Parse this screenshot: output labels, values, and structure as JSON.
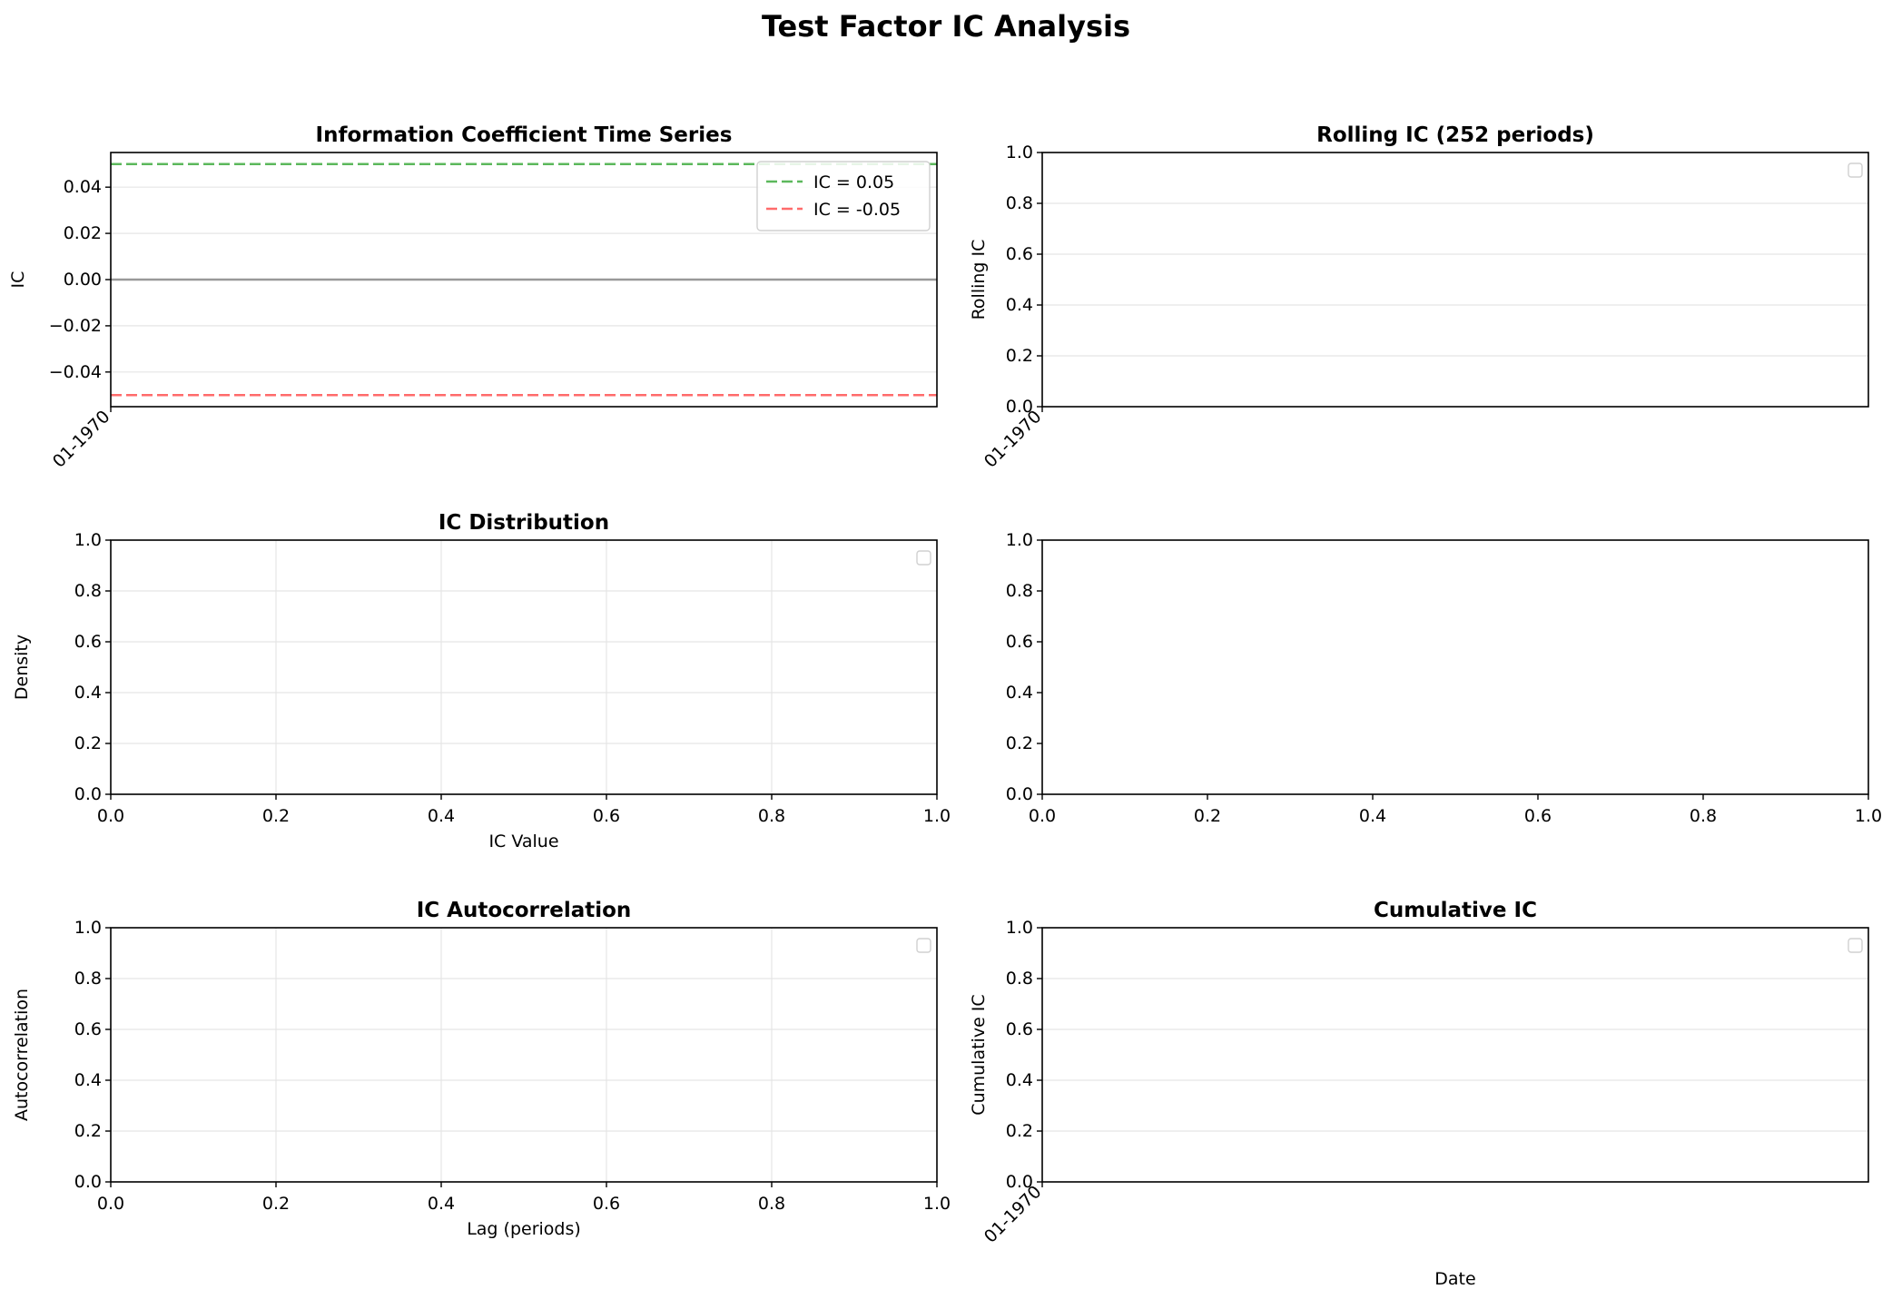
{
  "figure": {
    "title": "Test Factor IC Analysis"
  },
  "colors": {
    "frame": "#000000",
    "grid": "#e5e5e5",
    "zero_line": "#999999",
    "positive_threshold": "#5cb85c",
    "negative_threshold": "#ff6b6b",
    "legend_border": "#d0d0d0"
  },
  "chart_data": [
    {
      "id": "ic_timeseries",
      "type": "line",
      "title": "Information Coefficient Time Series",
      "xlabel": "",
      "ylabel": "IC",
      "x_is_date": true,
      "x_ticks": [
        {
          "value": 0,
          "label": "01-1970"
        }
      ],
      "ylim": [
        -0.055,
        0.055
      ],
      "y_ticks": [
        {
          "value": -0.04,
          "label": "−0.04"
        },
        {
          "value": -0.02,
          "label": "−0.02"
        },
        {
          "value": 0,
          "label": "0.00"
        },
        {
          "value": 0.02,
          "label": "0.02"
        },
        {
          "value": 0.04,
          "label": "0.04"
        }
      ],
      "grid": "y",
      "series": [],
      "reference_lines": [
        {
          "y": 0.05,
          "label": "IC = 0.05",
          "style": "dashed",
          "color_key": "positive_threshold"
        },
        {
          "y": -0.05,
          "label": "IC = -0.05",
          "style": "dashed",
          "color_key": "negative_threshold"
        },
        {
          "y": 0,
          "label": "",
          "style": "solid",
          "color_key": "zero_line"
        }
      ],
      "legend": {
        "placement": "top-right",
        "entries": [
          "IC = 0.05",
          "IC = -0.05"
        ]
      }
    },
    {
      "id": "rolling_ic",
      "type": "line",
      "title": "Rolling IC (252 periods)",
      "xlabel": "",
      "ylabel": "Rolling IC",
      "x_is_date": true,
      "x_ticks": [
        {
          "value": 0,
          "label": "01-1970"
        }
      ],
      "ylim": [
        0,
        1
      ],
      "y_ticks": [
        {
          "value": 0,
          "label": "0.0"
        },
        {
          "value": 0.2,
          "label": "0.2"
        },
        {
          "value": 0.4,
          "label": "0.4"
        },
        {
          "value": 0.6,
          "label": "0.6"
        },
        {
          "value": 0.8,
          "label": "0.8"
        },
        {
          "value": 1,
          "label": "1.0"
        }
      ],
      "grid": "y",
      "series": [],
      "legend": {
        "placement": "top-right",
        "entries": []
      }
    },
    {
      "id": "ic_distribution",
      "type": "bar",
      "title": "IC Distribution",
      "xlabel": "IC Value",
      "ylabel": "Density",
      "x_is_date": false,
      "xlim": [
        0,
        1
      ],
      "x_ticks": [
        {
          "value": 0,
          "label": "0.0"
        },
        {
          "value": 0.2,
          "label": "0.2"
        },
        {
          "value": 0.4,
          "label": "0.4"
        },
        {
          "value": 0.6,
          "label": "0.6"
        },
        {
          "value": 0.8,
          "label": "0.8"
        },
        {
          "value": 1,
          "label": "1.0"
        }
      ],
      "ylim": [
        0,
        1
      ],
      "y_ticks": [
        {
          "value": 0,
          "label": "0.0"
        },
        {
          "value": 0.2,
          "label": "0.2"
        },
        {
          "value": 0.4,
          "label": "0.4"
        },
        {
          "value": 0.6,
          "label": "0.6"
        },
        {
          "value": 0.8,
          "label": "0.8"
        },
        {
          "value": 1,
          "label": "1.0"
        }
      ],
      "grid": "both",
      "series": [],
      "legend": {
        "placement": "top-right",
        "entries": []
      }
    },
    {
      "id": "empty_panel",
      "type": "line",
      "title": "",
      "xlabel": "",
      "ylabel": "",
      "x_is_date": false,
      "xlim": [
        0,
        1
      ],
      "x_ticks": [
        {
          "value": 0,
          "label": "0.0"
        },
        {
          "value": 0.2,
          "label": "0.2"
        },
        {
          "value": 0.4,
          "label": "0.4"
        },
        {
          "value": 0.6,
          "label": "0.6"
        },
        {
          "value": 0.8,
          "label": "0.8"
        },
        {
          "value": 1,
          "label": "1.0"
        }
      ],
      "ylim": [
        0,
        1
      ],
      "y_ticks": [
        {
          "value": 0,
          "label": "0.0"
        },
        {
          "value": 0.2,
          "label": "0.2"
        },
        {
          "value": 0.4,
          "label": "0.4"
        },
        {
          "value": 0.6,
          "label": "0.6"
        },
        {
          "value": 0.8,
          "label": "0.8"
        },
        {
          "value": 1,
          "label": "1.0"
        }
      ],
      "grid": "none",
      "series": []
    },
    {
      "id": "ic_autocorrelation",
      "type": "bar",
      "title": "IC Autocorrelation",
      "xlabel": "Lag (periods)",
      "ylabel": "Autocorrelation",
      "x_is_date": false,
      "xlim": [
        0,
        1
      ],
      "x_ticks": [
        {
          "value": 0,
          "label": "0.0"
        },
        {
          "value": 0.2,
          "label": "0.2"
        },
        {
          "value": 0.4,
          "label": "0.4"
        },
        {
          "value": 0.6,
          "label": "0.6"
        },
        {
          "value": 0.8,
          "label": "0.8"
        },
        {
          "value": 1,
          "label": "1.0"
        }
      ],
      "ylim": [
        0,
        1
      ],
      "y_ticks": [
        {
          "value": 0,
          "label": "0.0"
        },
        {
          "value": 0.2,
          "label": "0.2"
        },
        {
          "value": 0.4,
          "label": "0.4"
        },
        {
          "value": 0.6,
          "label": "0.6"
        },
        {
          "value": 0.8,
          "label": "0.8"
        },
        {
          "value": 1,
          "label": "1.0"
        }
      ],
      "grid": "both",
      "series": [],
      "legend": {
        "placement": "top-right",
        "entries": []
      }
    },
    {
      "id": "cumulative_ic",
      "type": "line",
      "title": "Cumulative IC",
      "xlabel": "Date",
      "ylabel": "Cumulative IC",
      "x_is_date": true,
      "x_ticks": [
        {
          "value": 0,
          "label": "01-1970"
        }
      ],
      "ylim": [
        0,
        1
      ],
      "y_ticks": [
        {
          "value": 0,
          "label": "0.0"
        },
        {
          "value": 0.2,
          "label": "0.2"
        },
        {
          "value": 0.4,
          "label": "0.4"
        },
        {
          "value": 0.6,
          "label": "0.6"
        },
        {
          "value": 0.8,
          "label": "0.8"
        },
        {
          "value": 1,
          "label": "1.0"
        }
      ],
      "grid": "y",
      "series": [],
      "legend": {
        "placement": "top-right",
        "entries": []
      }
    }
  ]
}
